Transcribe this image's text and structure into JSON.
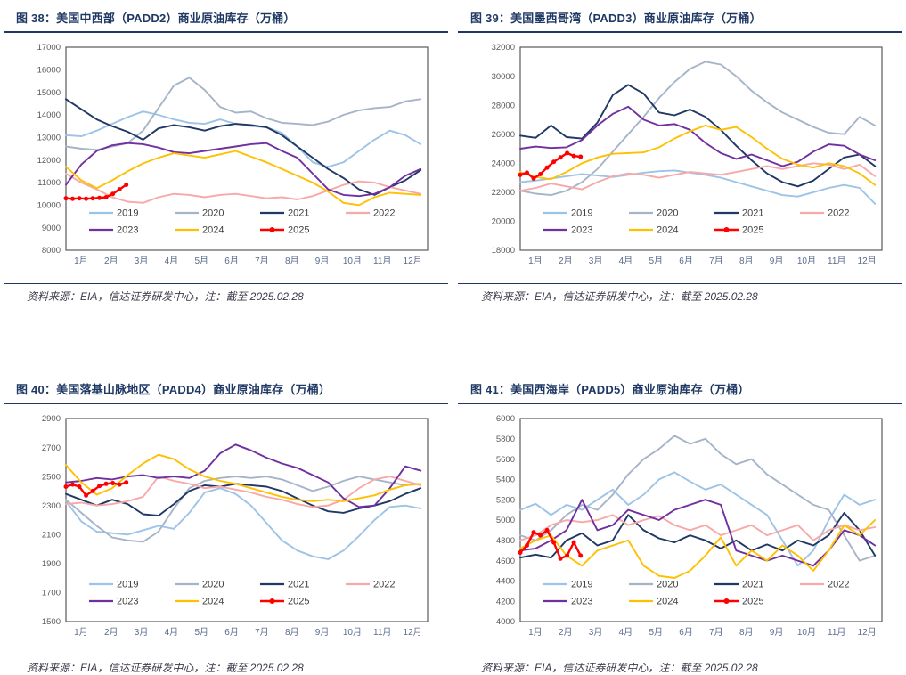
{
  "page": {
    "background": "#ffffff"
  },
  "styles": {
    "title_color": "#1F3864",
    "rule_color": "#1F3864",
    "plot_border_color": "#595959",
    "axis_text_color": "#595959",
    "x_axis_text_color": "#5B6B8C",
    "legend_text_color": "#404040",
    "source_text_color": "#3a3a4a"
  },
  "chart_data": [
    {
      "type": "line",
      "figure_label": "图 38",
      "title": "图 38：美国中西部（PADD2）商业原油库存（万桶）",
      "source_note": "资料来源：EIA，信达证券研发中心，注：截至 2025.02.28",
      "ylim": [
        8000,
        17000
      ],
      "y_step": 1000,
      "grid": false,
      "legend_position": "inside-bottom",
      "x_labels": [
        "1月",
        "2月",
        "3月",
        "4月",
        "5月",
        "6月",
        "7月",
        "8月",
        "9月",
        "10月",
        "11月",
        "12月"
      ],
      "series": [
        {
          "name": "2019",
          "color": "#9DC3E6",
          "values": [
            13100,
            13050,
            13300,
            13600,
            13900,
            14150,
            14000,
            13800,
            13650,
            13600,
            13800,
            13600,
            13500,
            13450,
            13200,
            12600,
            11900,
            11700,
            11900,
            12400,
            12900,
            13300,
            13100,
            12700
          ]
        },
        {
          "name": "2020",
          "color": "#A6B4C8",
          "values": [
            12600,
            12500,
            12450,
            12600,
            12750,
            13300,
            14300,
            15300,
            15650,
            15100,
            14350,
            14100,
            14150,
            13850,
            13650,
            13600,
            13550,
            13700,
            14000,
            14200,
            14300,
            14350,
            14600,
            14700
          ]
        },
        {
          "name": "2021",
          "color": "#203864",
          "values": [
            14700,
            14250,
            13800,
            13500,
            13250,
            12900,
            13400,
            13550,
            13450,
            13300,
            13500,
            13600,
            13550,
            13450,
            13100,
            12600,
            12100,
            11600,
            11200,
            10700,
            10450,
            10800,
            11100,
            11550
          ]
        },
        {
          "name": "2022",
          "color": "#F8A8A8",
          "values": [
            11400,
            11000,
            10700,
            10350,
            10150,
            10100,
            10350,
            10500,
            10450,
            10350,
            10450,
            10500,
            10400,
            10300,
            10350,
            10250,
            10400,
            10650,
            10900,
            11050,
            11000,
            10800,
            10650,
            10500
          ]
        },
        {
          "name": "2023",
          "color": "#7030A0",
          "values": [
            10900,
            11800,
            12400,
            12650,
            12750,
            12700,
            12550,
            12350,
            12300,
            12400,
            12500,
            12600,
            12700,
            12750,
            12400,
            12100,
            11400,
            10700,
            10450,
            10400,
            10500,
            10800,
            11300,
            11600
          ]
        },
        {
          "name": "2024",
          "color": "#FFC000",
          "values": [
            11700,
            11100,
            10750,
            11100,
            11500,
            11850,
            12100,
            12300,
            12200,
            12100,
            12250,
            12400,
            12150,
            11900,
            11600,
            11300,
            11000,
            10600,
            10100,
            10000,
            10350,
            10550,
            10500,
            10450
          ]
        },
        {
          "name": "2025",
          "color": "#FF0000",
          "marker": true,
          "span_months": 2.0,
          "values": [
            10300,
            10280,
            10300,
            10280,
            10300,
            10320,
            10350,
            10500,
            10700,
            10900
          ]
        }
      ]
    },
    {
      "type": "line",
      "figure_label": "图 39",
      "title": "图 39：美国墨西哥湾（PADD3）商业原油库存（万桶）",
      "source_note": "资料来源：EIA，信达证券研发中心，注：截至 2025.02.28",
      "ylim": [
        18000,
        32000
      ],
      "y_step": 2000,
      "grid": false,
      "legend_position": "inside-bottom",
      "x_labels": [
        "1月",
        "2月",
        "3月",
        "4月",
        "5月",
        "6月",
        "7月",
        "8月",
        "9月",
        "10月",
        "11月",
        "12月"
      ],
      "series": [
        {
          "name": "2019",
          "color": "#9DC3E6",
          "values": [
            22700,
            22800,
            22950,
            23100,
            23250,
            23150,
            23050,
            23200,
            23350,
            23450,
            23500,
            23350,
            23200,
            23000,
            22700,
            22400,
            22100,
            21800,
            21700,
            22000,
            22300,
            22500,
            22300,
            21200
          ]
        },
        {
          "name": "2020",
          "color": "#A6B4C8",
          "values": [
            22100,
            21900,
            21800,
            22100,
            22700,
            23600,
            24800,
            26000,
            27200,
            28500,
            29600,
            30500,
            31000,
            30800,
            30000,
            29000,
            28200,
            27500,
            27000,
            26500,
            26100,
            26000,
            27200,
            26600
          ]
        },
        {
          "name": "2021",
          "color": "#203864",
          "values": [
            25900,
            25750,
            26600,
            25800,
            25700,
            26800,
            28700,
            29400,
            28800,
            27500,
            27300,
            27700,
            27200,
            26300,
            25200,
            24200,
            23300,
            22700,
            22400,
            22800,
            23600,
            24400,
            24600,
            23800
          ]
        },
        {
          "name": "2022",
          "color": "#F8A8A8",
          "values": [
            22100,
            22300,
            22600,
            22400,
            22200,
            22700,
            23100,
            23300,
            23200,
            23000,
            23200,
            23400,
            23300,
            23200,
            23400,
            23600,
            23800,
            23600,
            23800,
            24000,
            23900,
            23600,
            23900,
            23100
          ]
        },
        {
          "name": "2023",
          "color": "#7030A0",
          "values": [
            25000,
            25150,
            25050,
            25100,
            25600,
            26600,
            27400,
            27900,
            27000,
            26600,
            26700,
            26300,
            25400,
            24700,
            24300,
            24600,
            24200,
            23800,
            24100,
            24800,
            25300,
            25200,
            24600,
            24200
          ]
        },
        {
          "name": "2024",
          "color": "#FFC000",
          "values": [
            23400,
            23050,
            22900,
            23400,
            24000,
            24400,
            24650,
            24700,
            24750,
            25100,
            25700,
            26200,
            26600,
            26300,
            26500,
            25800,
            25000,
            24300,
            23900,
            23700,
            24000,
            23800,
            23300,
            22500
          ]
        },
        {
          "name": "2025",
          "color": "#FF0000",
          "marker": true,
          "span_months": 2.0,
          "values": [
            23200,
            23350,
            22950,
            23250,
            23700,
            24100,
            24400,
            24700,
            24500,
            24450
          ]
        }
      ]
    },
    {
      "type": "line",
      "figure_label": "图 40",
      "title": "图 40：美国落基山脉地区（PADD4）商业原油库存（万桶）",
      "source_note": "资料来源：EIA，信达证券研发中心，注：截至 2025.02.28",
      "ylim": [
        1500,
        2900
      ],
      "y_step": 200,
      "grid": false,
      "legend_position": "inside-bottom",
      "x_labels": [
        "1月",
        "2月",
        "3月",
        "4月",
        "5月",
        "6月",
        "7月",
        "8月",
        "9月",
        "10月",
        "11月",
        "12月"
      ],
      "series": [
        {
          "name": "2019",
          "color": "#9DC3E6",
          "values": [
            2330,
            2190,
            2120,
            2110,
            2100,
            2130,
            2160,
            2140,
            2250,
            2390,
            2420,
            2380,
            2300,
            2180,
            2060,
            1990,
            1950,
            1930,
            1990,
            2090,
            2200,
            2290,
            2300,
            2280
          ]
        },
        {
          "name": "2020",
          "color": "#A6B4C8",
          "values": [
            2340,
            2250,
            2160,
            2080,
            2060,
            2050,
            2120,
            2280,
            2420,
            2470,
            2490,
            2500,
            2490,
            2500,
            2480,
            2440,
            2400,
            2430,
            2470,
            2500,
            2480,
            2460,
            2440,
            2450
          ]
        },
        {
          "name": "2021",
          "color": "#203864",
          "values": [
            2380,
            2340,
            2300,
            2340,
            2310,
            2240,
            2230,
            2310,
            2400,
            2440,
            2430,
            2450,
            2440,
            2430,
            2400,
            2350,
            2300,
            2260,
            2250,
            2280,
            2300,
            2330,
            2380,
            2420
          ]
        },
        {
          "name": "2022",
          "color": "#F8A8A8",
          "values": [
            2310,
            2320,
            2300,
            2310,
            2330,
            2360,
            2500,
            2470,
            2450,
            2420,
            2430,
            2410,
            2390,
            2360,
            2340,
            2310,
            2290,
            2300,
            2340,
            2420,
            2480,
            2500,
            2470,
            2440
          ]
        },
        {
          "name": "2023",
          "color": "#7030A0",
          "values": [
            2460,
            2470,
            2490,
            2480,
            2500,
            2510,
            2490,
            2500,
            2490,
            2540,
            2660,
            2720,
            2680,
            2630,
            2590,
            2560,
            2510,
            2460,
            2350,
            2290,
            2300,
            2420,
            2570,
            2540
          ]
        },
        {
          "name": "2024",
          "color": "#FFC000",
          "values": [
            2580,
            2460,
            2375,
            2420,
            2510,
            2590,
            2650,
            2620,
            2550,
            2500,
            2470,
            2450,
            2420,
            2390,
            2360,
            2340,
            2330,
            2340,
            2330,
            2350,
            2370,
            2410,
            2440,
            2450
          ]
        },
        {
          "name": "2025",
          "color": "#FF0000",
          "marker": true,
          "span_months": 2.0,
          "values": [
            2430,
            2445,
            2430,
            2370,
            2400,
            2435,
            2450,
            2455,
            2445,
            2460
          ]
        }
      ]
    },
    {
      "type": "line",
      "figure_label": "图 41",
      "title": "图 41：美国西海岸（PADD5）商业原油库存（万桶）",
      "source_note": "资料来源：EIA，信达证券研发中心，注：截至 2025.02.28",
      "ylim": [
        4000,
        6000
      ],
      "y_step": 200,
      "grid": false,
      "legend_position": "inside-bottom",
      "x_labels": [
        "1月",
        "2月",
        "3月",
        "4月",
        "5月",
        "6月",
        "7月",
        "8月",
        "9月",
        "10月",
        "11月",
        "12月"
      ],
      "series": [
        {
          "name": "2019",
          "color": "#9DC3E6",
          "values": [
            5100,
            5160,
            5050,
            5150,
            5100,
            5200,
            5300,
            5150,
            5250,
            5400,
            5470,
            5380,
            5300,
            5350,
            5250,
            5150,
            5050,
            4800,
            4550,
            4700,
            5000,
            5250,
            5150,
            5200
          ]
        },
        {
          "name": "2020",
          "color": "#A6B4C8",
          "values": [
            4850,
            4800,
            4900,
            5050,
            5150,
            5100,
            5250,
            5450,
            5600,
            5700,
            5830,
            5750,
            5800,
            5650,
            5550,
            5600,
            5450,
            5350,
            5250,
            5150,
            5100,
            4850,
            4600,
            4650
          ]
        },
        {
          "name": "2021",
          "color": "#203864",
          "values": [
            4630,
            4660,
            4630,
            4800,
            4870,
            4750,
            4800,
            5050,
            4900,
            4820,
            4780,
            4850,
            4800,
            4720,
            4800,
            4700,
            4760,
            4700,
            4800,
            4750,
            4850,
            5070,
            4900,
            4650
          ]
        },
        {
          "name": "2022",
          "color": "#F8A8A8",
          "values": [
            4800,
            4850,
            4950,
            5000,
            4980,
            5000,
            5050,
            4950,
            5000,
            5040,
            4950,
            4900,
            4950,
            4850,
            4900,
            4950,
            4850,
            4900,
            4950,
            4800,
            4900,
            4950,
            4900,
            4930
          ]
        },
        {
          "name": "2023",
          "color": "#7030A0",
          "values": [
            4700,
            4720,
            4800,
            4900,
            5200,
            4900,
            4950,
            5100,
            5050,
            5000,
            5100,
            5150,
            5200,
            5150,
            4700,
            4650,
            4600,
            4650,
            4600,
            4550,
            4700,
            4900,
            4850,
            4750
          ]
        },
        {
          "name": "2024",
          "color": "#FFC000",
          "values": [
            4720,
            4800,
            4850,
            4650,
            4550,
            4700,
            4750,
            4800,
            4550,
            4450,
            4430,
            4500,
            4650,
            4830,
            4550,
            4700,
            4600,
            4750,
            4650,
            4500,
            4700,
            4950,
            4850,
            5000
          ]
        },
        {
          "name": "2025",
          "color": "#FF0000",
          "marker": true,
          "span_months": 2.0,
          "values": [
            4680,
            4750,
            4880,
            4850,
            4900,
            4780,
            4620,
            4650,
            4780,
            4650
          ]
        }
      ]
    }
  ]
}
